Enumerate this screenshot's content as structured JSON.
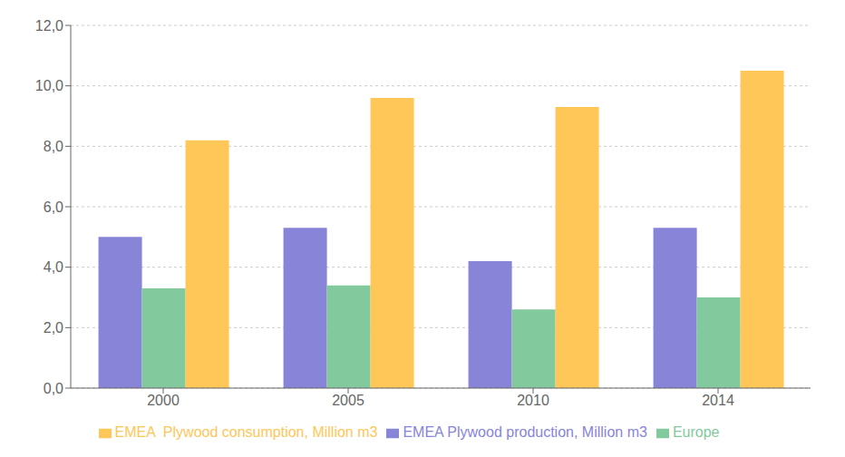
{
  "chart_data": {
    "type": "bar",
    "categories": [
      "2000",
      "2005",
      "2010",
      "2014"
    ],
    "series": [
      {
        "name": "EMEA Plywood production, Million m3",
        "values": [
          5.0,
          5.3,
          4.2,
          5.3
        ]
      },
      {
        "name": "Europe",
        "values": [
          3.3,
          3.4,
          2.6,
          3.0
        ]
      },
      {
        "name": "EMEA  Plywood consumption, Million m3",
        "values": [
          8.2,
          9.6,
          9.3,
          10.5
        ]
      }
    ],
    "ylim": [
      0,
      12
    ],
    "yticks": [
      {
        "value": 0,
        "label": "0,0"
      },
      {
        "value": 2,
        "label": "2,0"
      },
      {
        "value": 4,
        "label": "4,0"
      },
      {
        "value": 6,
        "label": "6,0"
      },
      {
        "value": 8,
        "label": "8,0"
      },
      {
        "value": 10,
        "label": "10,0"
      },
      {
        "value": 12,
        "label": "12,0"
      }
    ],
    "grid": true,
    "legend": "bottom"
  }
}
